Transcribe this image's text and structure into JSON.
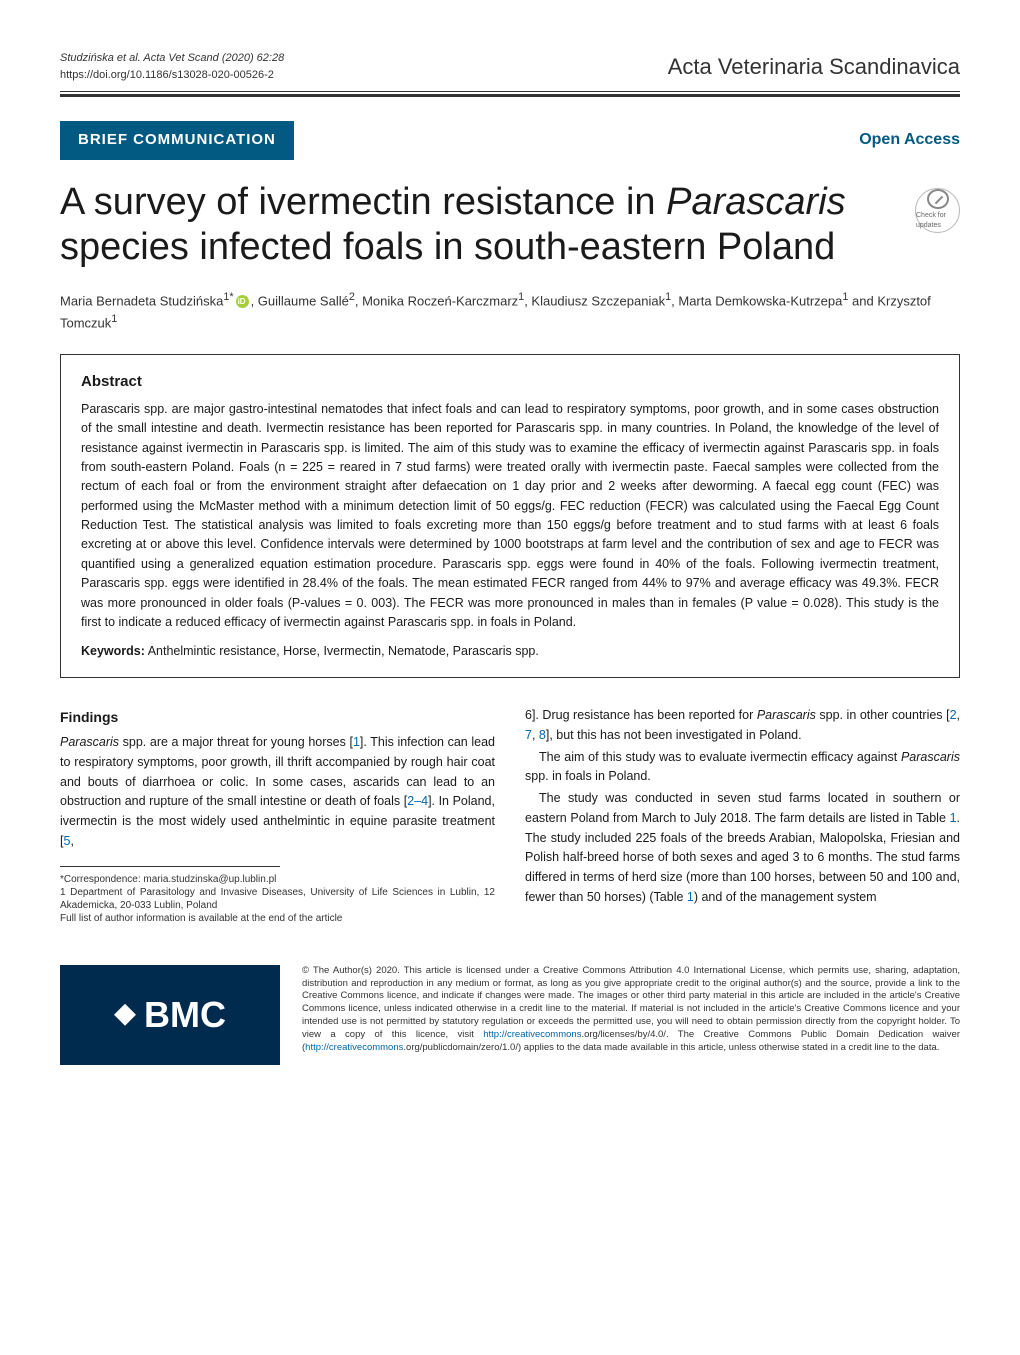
{
  "header": {
    "citation": "Studzińska et al. Acta Vet Scand     (2020) 62:28",
    "doi": "https://doi.org/10.1186/s13028-020-00526-2",
    "journal": "Acta Veterinaria Scandinavica"
  },
  "banner": {
    "article_type": "BRIEF COMMUNICATION",
    "open_access": "Open Access"
  },
  "crossmark_label": "Check for updates",
  "title": "A survey of ivermectin resistance in Parascaris species infected foals in south-eastern Poland",
  "title_plain_part1": "A survey of ivermectin resistance in ",
  "title_italic_part": "Parascaris",
  "title_plain_part2": " species infected foals in south-eastern Poland",
  "authors_html": "Maria Bernadeta Studzińska<sup>1*</sup><span class='orcid'></span>, Guillaume Sallé<sup>2</sup>, Monika Roczeń-Karczmarz<sup>1</sup>, Klaudiusz Szczepaniak<sup>1</sup>, Marta Demkowska-Kutrzepa<sup>1</sup> and Krzysztof Tomczuk<sup>1</sup>",
  "abstract": {
    "heading": "Abstract",
    "text": "Parascaris spp. are major gastro-intestinal nematodes that infect foals and can lead to respiratory symptoms, poor growth, and in some cases obstruction of the small intestine and death. Ivermectin resistance has been reported for Parascaris spp. in many countries. In Poland, the knowledge of the level of resistance against ivermectin in Parascaris spp. is limited. The aim of this study was to examine the efficacy of ivermectin against Parascaris spp. in foals from south-eastern Poland. Foals (n = 225 = reared in 7 stud farms) were treated orally with ivermectin paste. Faecal samples were collected from the rectum of each foal or from the environment straight after defaecation on 1 day prior and 2 weeks after deworming. A faecal egg count (FEC) was performed using the McMaster method with a minimum detection limit of 50 eggs/g. FEC reduction (FECR) was calculated using the Faecal Egg Count Reduction Test. The statistical analysis was limited to foals excreting more than 150 eggs/g before treatment and to stud farms with at least 6 foals excreting at or above this level. Confidence intervals were determined by 1000 bootstraps at farm level and the contribution of sex and age to FECR was quantified using a generalized equation estimation procedure. Parascaris spp. eggs were found in 40% of the foals. Following ivermectin treatment, Parascaris spp. eggs were identified in 28.4% of the foals. The mean estimated FECR ranged from 44% to 97% and average efficacy was 49.3%. FECR was more pronounced in older foals (P-values = 0. 003). The FECR was more pronounced in males than in females (P value = 0.028). This study is the first to indicate a reduced efficacy of ivermectin against Parascaris spp. in foals in Poland.",
    "keywords_label": "Keywords:",
    "keywords_text": "  Anthelmintic resistance, Horse, Ivermectin, Nematode, Parascaris spp."
  },
  "findings": {
    "heading": "Findings",
    "col1_p1": "Parascaris spp. are a major threat for young horses [1]. This infection can lead to respiratory symptoms, poor growth, ill thrift accompanied by rough hair coat and bouts of diarrhoea or colic. In some cases, ascarids can lead to an obstruction and rupture of the small intestine or death of foals [2–4]. In Poland, ivermectin is the most widely used anthelmintic in equine parasite treatment [5,",
    "col2_p1": "6]. Drug resistance has been reported for Parascaris spp. in other countries [2, 7, 8], but this has not been investigated in Poland.",
    "col2_p2": "The aim of this study was to evaluate ivermectin efficacy against Parascaris spp. in foals in Poland.",
    "col2_p3": "The study was conducted in seven stud farms located in southern or eastern Poland from March to July 2018. The farm details are listed in Table 1. The study included 225 foals of the breeds Arabian, Malopolska, Friesian and Polish half-breed horse of both sexes and aged 3 to 6 months. The stud farms differed in terms of herd size (more than 100 horses, between 50 and 100 and, fewer than 50 horses) (Table 1) and of the management system"
  },
  "correspondence": {
    "line1": "*Correspondence:  maria.studzinska@up.lublin.pl",
    "line2": "1 Department of Parasitology and Invasive Diseases, University of Life Sciences in Lublin, 12 Akademicka, 20-033 Lublin, Poland",
    "line3": "Full list of author information is available at the end of the article"
  },
  "footer": {
    "bmc": "BMC",
    "license": "© The Author(s) 2020. This article is licensed under a Creative Commons Attribution 4.0 International License, which permits use, sharing, adaptation, distribution and reproduction in any medium or format, as long as you give appropriate credit to the original author(s) and the source, provide a link to the Creative Commons licence, and indicate if changes were made. The images or other third party material in this article are included in the article's Creative Commons licence, unless indicated otherwise in a credit line to the material. If material is not included in the article's Creative Commons licence and your intended use is not permitted by statutory regulation or exceeds the permitted use, you will need to obtain permission directly from the copyright holder. To view a copy of this licence, visit http://creativecommons.org/licenses/by/4.0/. The Creative Commons Public Domain Dedication waiver (http://creativecommons.org/publicdomain/zero/1.0/) applies to the data made available in this article, unless otherwise stated in a credit line to the data."
  },
  "colors": {
    "brand_blue": "#025a82",
    "dark_navy": "#002b4e",
    "link": "#0066aa",
    "text": "#1a1a1a",
    "muted": "#333333",
    "orcid_green": "#a6ce39"
  }
}
